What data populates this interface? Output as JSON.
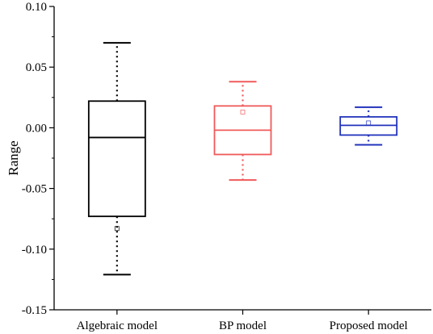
{
  "chart_data": {
    "type": "box",
    "title": "",
    "xlabel": "",
    "ylabel": "Range",
    "ylim": [
      -0.15,
      0.1
    ],
    "yticks": [
      -0.15,
      -0.1,
      -0.05,
      0.0,
      0.05,
      0.1
    ],
    "ytick_labels": [
      "-0.15",
      "-0.10",
      "-0.05",
      "0.00",
      "0.05",
      "0.10"
    ],
    "grid": false,
    "categories": [
      "Algebraic model",
      "BP model",
      "Proposed model"
    ],
    "series": [
      {
        "category": "Algebraic model",
        "color": "#000000",
        "whisker_low": -0.121,
        "q1": -0.073,
        "median": -0.008,
        "q3": 0.022,
        "whisker_high": 0.07,
        "mean": -0.083
      },
      {
        "category": "BP model",
        "color": "#f05a5a",
        "whisker_low": -0.043,
        "q1": -0.022,
        "median": -0.002,
        "q3": 0.018,
        "whisker_high": 0.038,
        "mean": 0.013
      },
      {
        "category": "Proposed model",
        "color": "#2233bb",
        "whisker_low": -0.014,
        "q1": -0.006,
        "median": 0.002,
        "q3": 0.009,
        "whisker_high": 0.017,
        "mean": 0.004
      }
    ]
  }
}
